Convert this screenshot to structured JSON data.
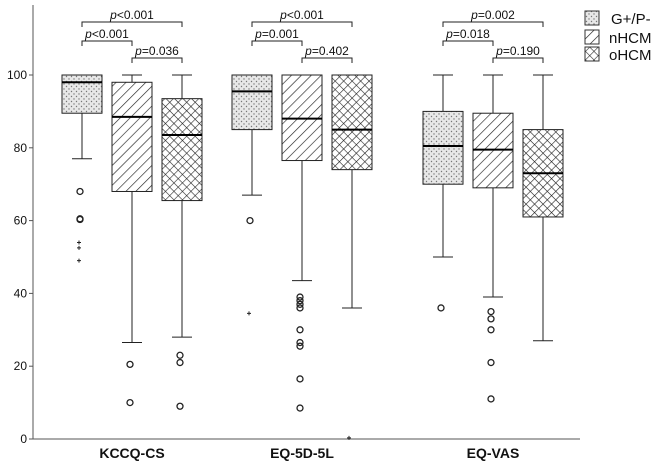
{
  "chart_data": {
    "type": "boxplot",
    "ylim": [
      0,
      115
    ],
    "y_ticks": [
      0,
      20,
      40,
      60,
      80,
      100
    ],
    "groups": [
      "KCCQ-CS",
      "EQ-5D-5L",
      "EQ-VAS"
    ],
    "series_names": [
      "G+/P-",
      "nHCM",
      "oHCM"
    ],
    "fill_patterns": [
      "dots",
      "diagonal",
      "crosshatch"
    ],
    "legend_position": "top-right",
    "boxes": [
      {
        "group": "KCCQ-CS",
        "series": "G+/P-",
        "min": 77,
        "q1": 89.5,
        "median": 98,
        "q3": 100,
        "max": 100,
        "outliers": [
          {
            "v": 68,
            "m": "o"
          },
          {
            "v": 60.5,
            "m": "o"
          },
          {
            "v": 60.3,
            "m": "o"
          },
          {
            "v": 54,
            "m": "+"
          },
          {
            "v": 52.5,
            "m": "+"
          },
          {
            "v": 49,
            "m": "+"
          }
        ]
      },
      {
        "group": "KCCQ-CS",
        "series": "nHCM",
        "min": 26.5,
        "q1": 68,
        "median": 88.5,
        "q3": 98,
        "max": 100,
        "outliers": [
          {
            "v": 20.5,
            "m": "o"
          },
          {
            "v": 10,
            "m": "o"
          }
        ]
      },
      {
        "group": "KCCQ-CS",
        "series": "oHCM",
        "min": 28,
        "q1": 65.5,
        "median": 83.5,
        "q3": 93.5,
        "max": 100,
        "outliers": [
          {
            "v": 23,
            "m": "o"
          },
          {
            "v": 21,
            "m": "o"
          },
          {
            "v": 9,
            "m": "o"
          }
        ]
      },
      {
        "group": "EQ-5D-5L",
        "series": "G+/P-",
        "min": 67,
        "q1": 85,
        "median": 95.5,
        "q3": 100,
        "max": 100,
        "outliers": [
          {
            "v": 60,
            "m": "o"
          },
          {
            "v": 34.5,
            "m": "+"
          }
        ]
      },
      {
        "group": "EQ-5D-5L",
        "series": "nHCM",
        "min": 43.5,
        "q1": 76.5,
        "median": 88,
        "q3": 100,
        "max": 100,
        "outliers": [
          {
            "v": 39,
            "m": "o"
          },
          {
            "v": 38,
            "m": "o"
          },
          {
            "v": 37,
            "m": "o"
          },
          {
            "v": 36,
            "m": "o"
          },
          {
            "v": 30,
            "m": "o"
          },
          {
            "v": 26.5,
            "m": "o"
          },
          {
            "v": 25.5,
            "m": "o"
          },
          {
            "v": 16.5,
            "m": "o"
          },
          {
            "v": 8.5,
            "m": "o"
          }
        ]
      },
      {
        "group": "EQ-5D-5L",
        "series": "oHCM",
        "min": 36,
        "q1": 74,
        "median": 85,
        "q3": 100,
        "max": 100,
        "outliers": [
          {
            "v": 0.3,
            "m": "+"
          }
        ]
      },
      {
        "group": "EQ-VAS",
        "series": "G+/P-",
        "min": 50,
        "q1": 70,
        "median": 80.5,
        "q3": 90,
        "max": 100,
        "outliers": [
          {
            "v": 36,
            "m": "o"
          }
        ]
      },
      {
        "group": "EQ-VAS",
        "series": "nHCM",
        "min": 39,
        "q1": 69,
        "median": 79.5,
        "q3": 89.5,
        "max": 100,
        "outliers": [
          {
            "v": 35,
            "m": "o"
          },
          {
            "v": 33,
            "m": "o"
          },
          {
            "v": 30,
            "m": "o"
          },
          {
            "v": 21,
            "m": "o"
          },
          {
            "v": 11,
            "m": "o"
          }
        ]
      },
      {
        "group": "EQ-VAS",
        "series": "oHCM",
        "min": 27,
        "q1": 61,
        "median": 73,
        "q3": 85,
        "max": 100,
        "outliers": []
      }
    ],
    "significance": [
      {
        "group": "KCCQ-CS",
        "from": "G+/P-",
        "to": "oHCM",
        "label": "p<0.001",
        "level": 0
      },
      {
        "group": "KCCQ-CS",
        "from": "G+/P-",
        "to": "nHCM",
        "label": "p<0.001",
        "level": 1
      },
      {
        "group": "KCCQ-CS",
        "from": "nHCM",
        "to": "oHCM",
        "label": "p=0.036",
        "level": 2
      },
      {
        "group": "EQ-5D-5L",
        "from": "G+/P-",
        "to": "oHCM",
        "label": "p<0.001",
        "level": 0
      },
      {
        "group": "EQ-5D-5L",
        "from": "G+/P-",
        "to": "nHCM",
        "label": "p=0.001",
        "level": 1
      },
      {
        "group": "EQ-5D-5L",
        "from": "nHCM",
        "to": "oHCM",
        "label": "p=0.402",
        "level": 2
      },
      {
        "group": "EQ-VAS",
        "from": "G+/P-",
        "to": "oHCM",
        "label": "p=0.002",
        "level": 0
      },
      {
        "group": "EQ-VAS",
        "from": "G+/P-",
        "to": "nHCM",
        "label": "p=0.018",
        "level": 1
      },
      {
        "group": "EQ-VAS",
        "from": "nHCM",
        "to": "oHCM",
        "label": "p=0.190",
        "level": 2
      }
    ]
  },
  "colors": {
    "box_fill": "#e6e6e6",
    "stroke": "#222222",
    "axis": "#555555"
  }
}
